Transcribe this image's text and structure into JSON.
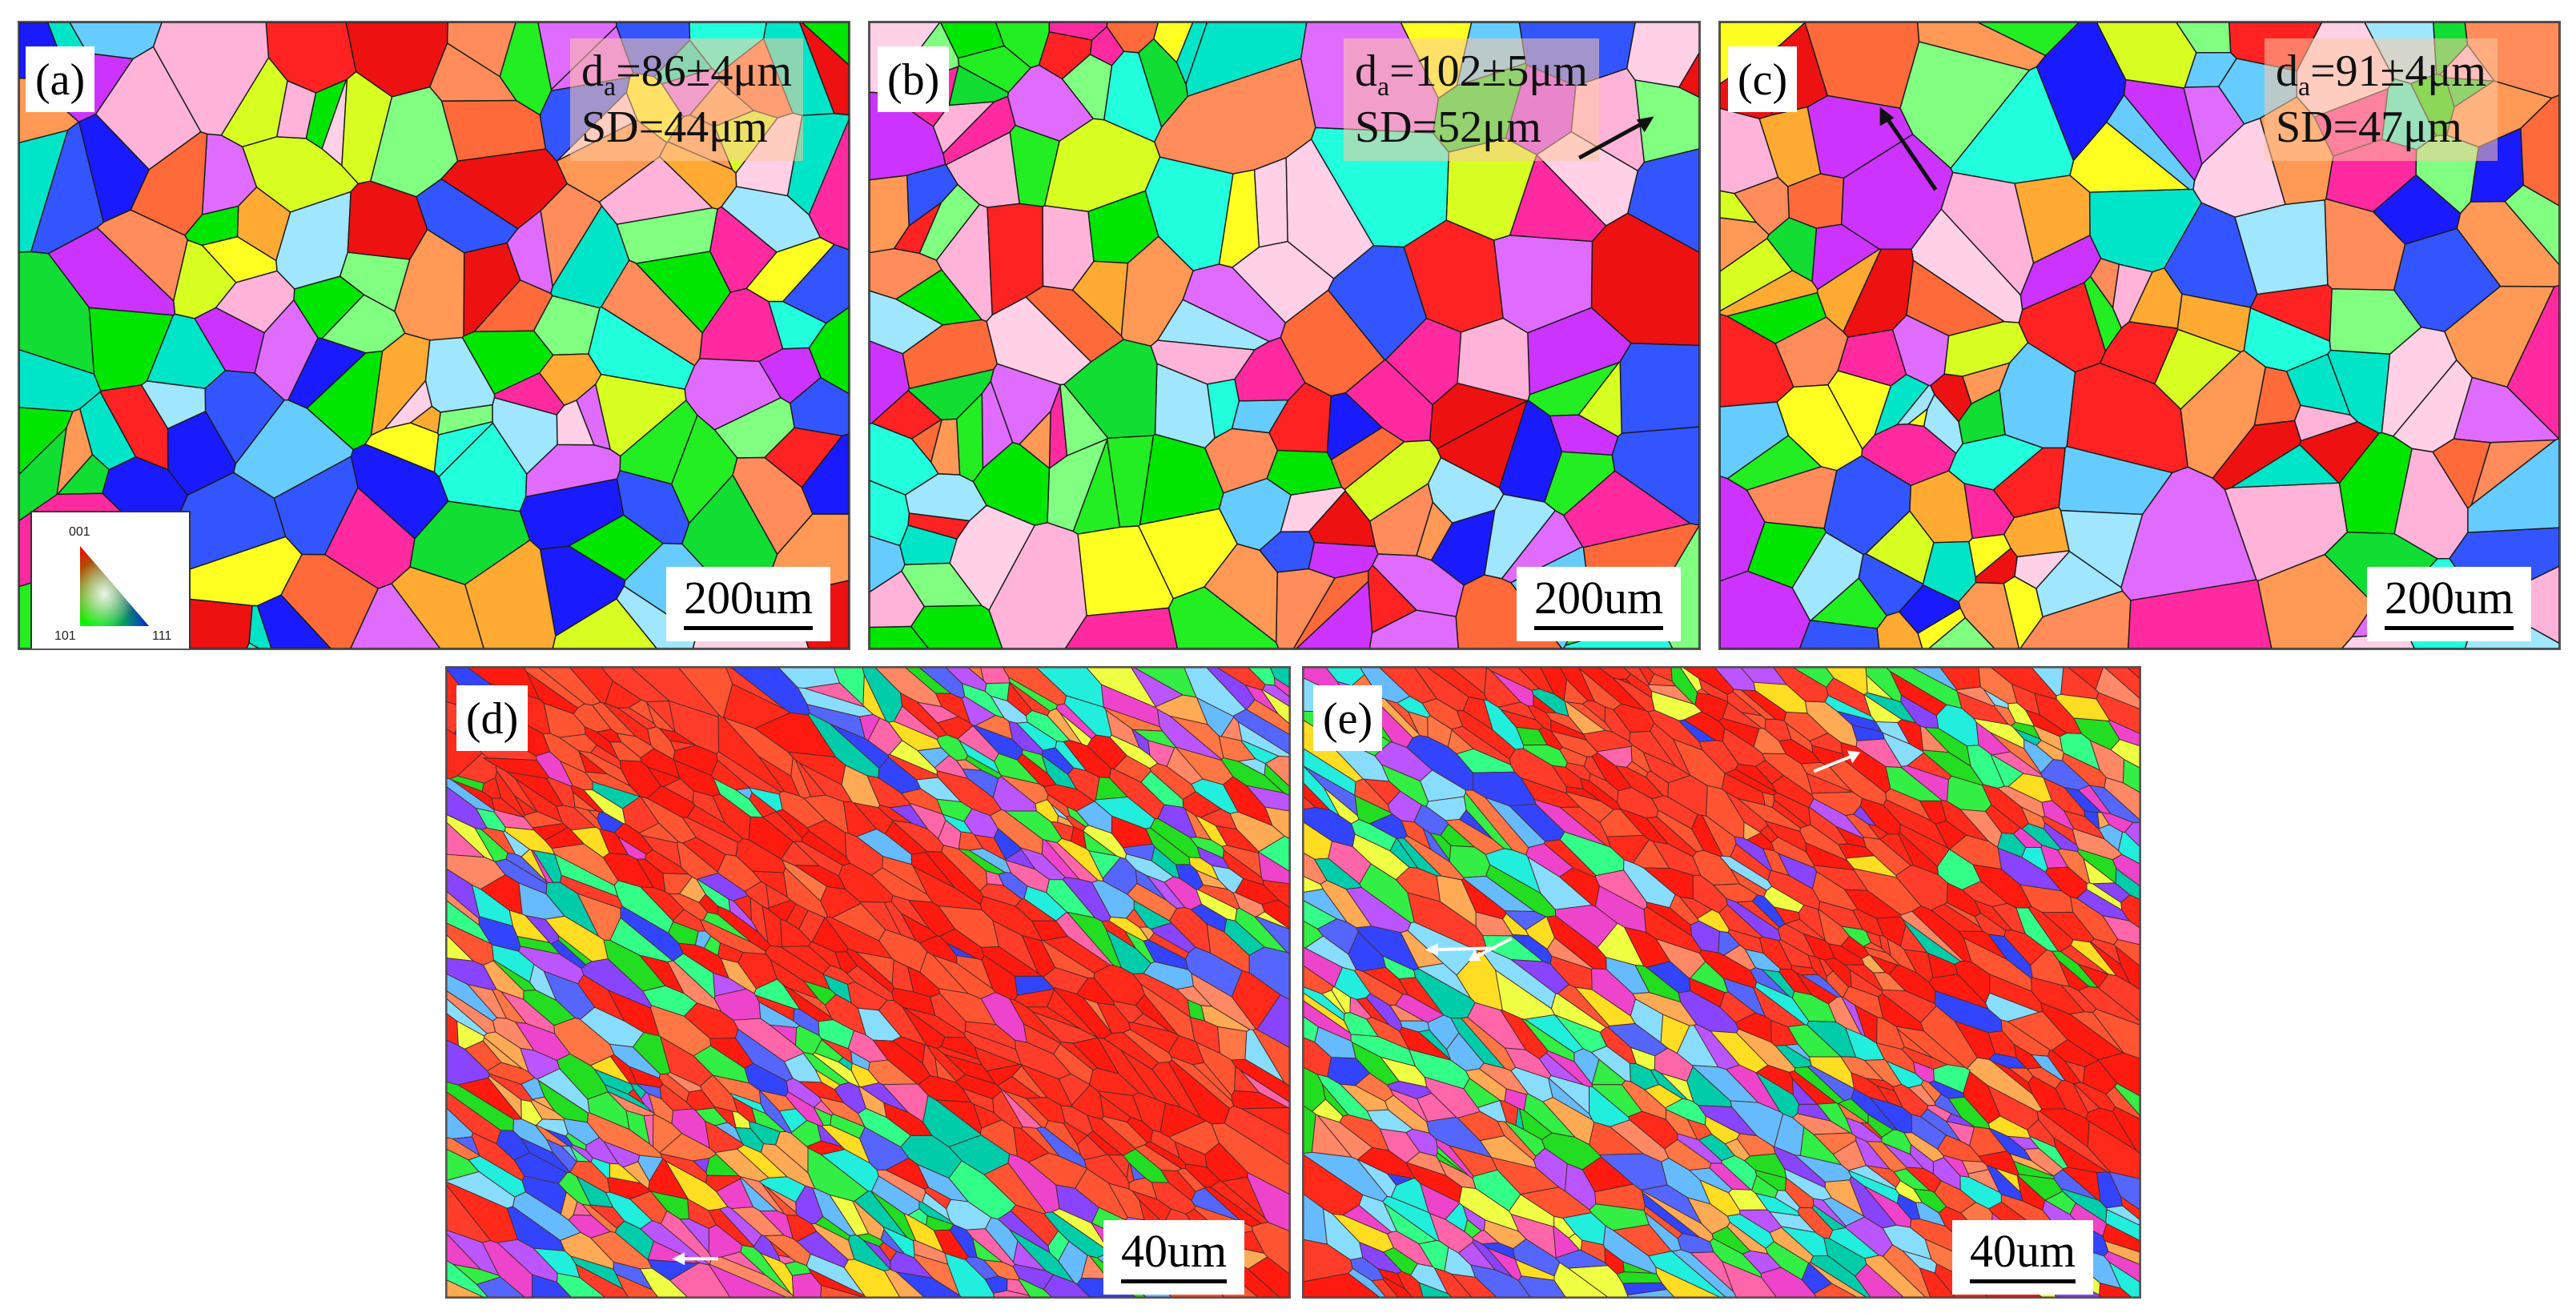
{
  "figure": {
    "panels": [
      {
        "id": "a",
        "label": "(a)",
        "stat_line1_prefix": "d",
        "stat_line1_sub": "a",
        "stat_line1_value": "=86±4μm",
        "stat_line2": "SD=44μm",
        "scale": "200um",
        "style": "coarse",
        "seed": 11
      },
      {
        "id": "b",
        "label": "(b)",
        "stat_line1_prefix": "d",
        "stat_line1_sub": "a",
        "stat_line1_value": "=102±5μm",
        "stat_line2": "SD=52μm",
        "scale": "200um",
        "style": "coarse",
        "seed": 23
      },
      {
        "id": "c",
        "label": "(c)",
        "stat_line1_prefix": "d",
        "stat_line1_sub": "a",
        "stat_line1_value": "=91±4μm",
        "stat_line2": "SD=47μm",
        "scale": "200um",
        "style": "coarse",
        "seed": 37
      },
      {
        "id": "d",
        "label": "(d)",
        "scale": "40um",
        "style": "deformed",
        "seed": 53
      },
      {
        "id": "e",
        "label": "(e)",
        "scale": "40um",
        "style": "deformed",
        "seed": 71
      }
    ],
    "ipf_legend": {
      "top": "001",
      "bottom_left": "101",
      "bottom_right": "111"
    },
    "palette": {
      "coarse": [
        "#00e600",
        "#22ee22",
        "#11dd33",
        "#ff2222",
        "#ee1111",
        "#ff6a3a",
        "#ff8c5a",
        "#3355ff",
        "#1a1aff",
        "#00e5c8",
        "#22ffdd",
        "#ff2aa0",
        "#cc33ff",
        "#e06cff",
        "#ffb3d9",
        "#ffd0e6",
        "#ffff22",
        "#d8ff22",
        "#ff9955",
        "#a0e6ff",
        "#80ff80",
        "#66ccff",
        "#ffaa33"
      ],
      "deformed": [
        "#ff2a1a",
        "#ff3d2a",
        "#ff1a10",
        "#ff5533",
        "#ff7744",
        "#ff8866",
        "#22dd22",
        "#33ee44",
        "#00ccaa",
        "#22eedd",
        "#3344ff",
        "#5566ff",
        "#8844ff",
        "#bb55ff",
        "#ee44cc",
        "#ff66aa",
        "#ffdd22",
        "#eeff44",
        "#88ddff",
        "#66bbff",
        "#ffaa55",
        "#33ff88"
      ]
    }
  }
}
